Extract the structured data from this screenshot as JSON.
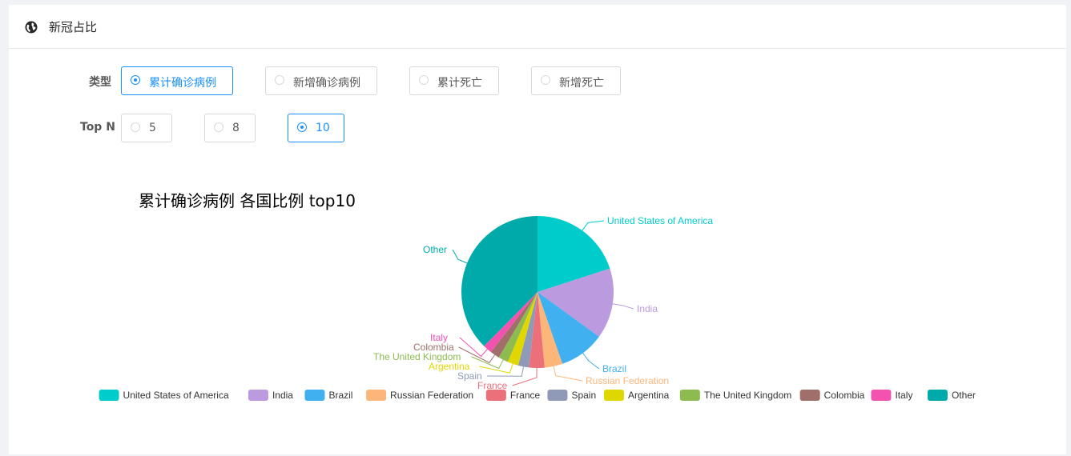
{
  "header": {
    "title": "新冠占比",
    "icon": "globe-icon"
  },
  "filters": {
    "type_label": "类型",
    "type_options": [
      "累计确诊病例",
      "新增确诊病例",
      "累计死亡",
      "新增死亡"
    ],
    "type_selected": "累计确诊病例",
    "topn_label": "Top N",
    "topn_options": [
      "5",
      "8",
      "10"
    ],
    "topn_selected": "10"
  },
  "chart_data": {
    "type": "pie",
    "title": "累计确诊病例 各国比例 top10",
    "legend_position": "bottom",
    "slices": [
      {
        "name": "United States of America",
        "value": 20.0,
        "color": "#00cccc"
      },
      {
        "name": "India",
        "value": 15.0,
        "color": "#bb9ae0"
      },
      {
        "name": "Brazil",
        "value": 9.7,
        "color": "#40b0f0"
      },
      {
        "name": "Russian Federation",
        "value": 3.8,
        "color": "#fdb67a"
      },
      {
        "name": "France",
        "value": 3.3,
        "color": "#ec7079"
      },
      {
        "name": "Spain",
        "value": 2.3,
        "color": "#8f9ab8"
      },
      {
        "name": "Argentina",
        "value": 2.3,
        "color": "#e0d700"
      },
      {
        "name": "The United Kingdom",
        "value": 2.1,
        "color": "#8dbb50"
      },
      {
        "name": "Colombia",
        "value": 2.0,
        "color": "#a06f69"
      },
      {
        "name": "Italy",
        "value": 1.9,
        "color": "#f352b0"
      },
      {
        "name": "Other",
        "value": 37.6,
        "color": "#00aaaa"
      }
    ]
  }
}
